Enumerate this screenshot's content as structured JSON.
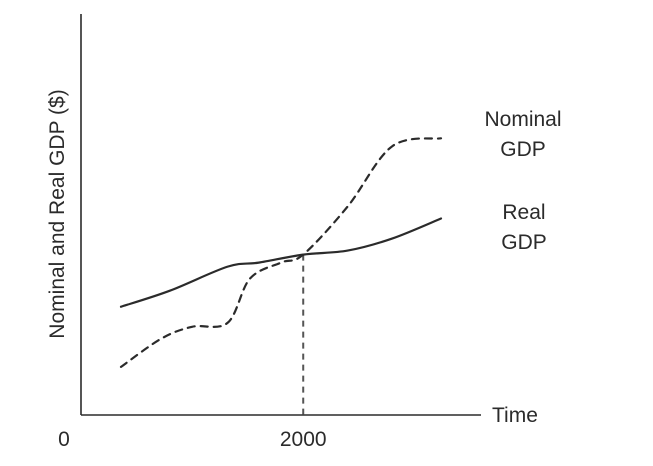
{
  "chart_data": {
    "type": "line",
    "title": "",
    "xlabel": "Time",
    "ylabel": "Nominal and Real GDP ($)",
    "origin_label": "0",
    "x_ticks": [
      {
        "x": 2000,
        "label": "2000"
      }
    ],
    "xlim": [
      1950,
      2040
    ],
    "ylim": [
      0,
      100
    ],
    "grid": false,
    "legend": "none",
    "reference_line": {
      "x": 2000,
      "style": "dashed"
    },
    "series": [
      {
        "name": "Nominal GDP",
        "label_lines": [
          "Nominal",
          "GDP"
        ],
        "style": "dashed",
        "x": [
          1959,
          1968,
          1975,
          1983,
          1988,
          1995,
          2000,
          2010,
          2020,
          2031
        ],
        "y": [
          12,
          19,
          22,
          23,
          34,
          38,
          40,
          52,
          67,
          69
        ]
      },
      {
        "name": "Real GDP",
        "label_lines": [
          "Real",
          "GDP"
        ],
        "style": "solid",
        "x": [
          1959,
          1970,
          1983,
          1990,
          2000,
          2010,
          2020,
          2031
        ],
        "y": [
          27,
          31,
          37,
          38,
          40,
          41,
          44,
          49
        ]
      }
    ]
  }
}
